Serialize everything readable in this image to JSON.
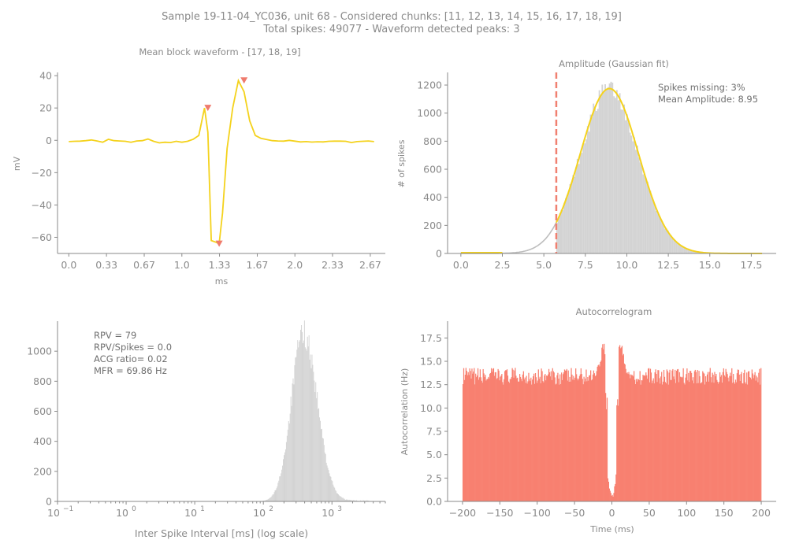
{
  "figure": {
    "title_line1": "Sample 19-11-04_YC036, unit 68 - Considered chunks: [11, 12, 13, 14, 15, 16, 17, 18, 19]",
    "title_line2": "Total spikes: 49077 - Waveform detected peaks: 3"
  },
  "colors": {
    "waveform": "#f4d21c",
    "fit": "#f4d21c",
    "peak_marker": "#ef7b6d",
    "gray_hist": "#d3d3d3",
    "gray_curve": "#bdbdbd",
    "threshold_line": "#f08070",
    "acg_bars": "#f88070",
    "axis": "#8a8a8a"
  },
  "chart_data": [
    {
      "id": "waveform",
      "type": "line",
      "title": "Mean block waveform - [17, 18, 19]",
      "xlabel": "ms",
      "ylabel": "mV",
      "xlim": [
        -0.1,
        2.8
      ],
      "ylim": [
        -70,
        42
      ],
      "x_ticks": [
        0,
        0.333,
        0.667,
        1.0,
        1.333,
        1.667,
        2.0,
        2.333,
        2.667
      ],
      "x_tick_labels": [
        "0.0",
        "0.33",
        "0.67",
        "1.0",
        "1.33",
        "1.67",
        "2.0",
        "2.33",
        "2.67"
      ],
      "y_ticks": [
        -60,
        -40,
        -20,
        0,
        20,
        40
      ],
      "y_tick_labels": [
        "−60",
        "−40",
        "−20",
        "0",
        "20",
        "40"
      ],
      "x": [
        0,
        0.05,
        0.1,
        0.15,
        0.2,
        0.25,
        0.3,
        0.35,
        0.4,
        0.45,
        0.5,
        0.55,
        0.6,
        0.65,
        0.7,
        0.75,
        0.8,
        0.85,
        0.9,
        0.95,
        1.0,
        1.05,
        1.1,
        1.15,
        1.2,
        1.23,
        1.26,
        1.3,
        1.33,
        1.36,
        1.4,
        1.45,
        1.5,
        1.55,
        1.6,
        1.65,
        1.7,
        1.75,
        1.8,
        1.85,
        1.9,
        1.95,
        2.0,
        2.05,
        2.1,
        2.15,
        2.2,
        2.25,
        2.3,
        2.35,
        2.4,
        2.45,
        2.5,
        2.55,
        2.6,
        2.65,
        2.7
      ],
      "y": [
        -0.8,
        -0.6,
        -0.5,
        -0.2,
        0.2,
        -0.4,
        -1.2,
        0.6,
        -0.2,
        -0.4,
        -0.6,
        -1.2,
        -0.4,
        -0.2,
        0.8,
        -0.6,
        -1.6,
        -1.2,
        -1.4,
        -0.6,
        -1.2,
        -0.6,
        0.6,
        3,
        20,
        5,
        -62,
        -63,
        -64,
        -45,
        -5,
        20,
        37,
        30,
        12,
        3,
        1.2,
        0.5,
        -0.2,
        -0.4,
        -0.5,
        0,
        -0.5,
        -1.0,
        -0.8,
        -1.1,
        -0.9,
        -1.0,
        -0.6,
        -0.5,
        -0.5,
        -0.6,
        -1.4,
        -0.8,
        -0.6,
        -0.4,
        -0.8
      ],
      "peaks": [
        {
          "x": 1.23,
          "y": 20
        },
        {
          "x": 1.33,
          "y": -64
        },
        {
          "x": 1.55,
          "y": 37
        }
      ]
    },
    {
      "id": "amplitude",
      "type": "bar",
      "title": "Amplitude (Gaussian fit)",
      "xlabel": "",
      "ylabel": "# of spikes",
      "xlim": [
        -0.8,
        19
      ],
      "ylim": [
        0,
        1290
      ],
      "x_ticks": [
        0,
        2.5,
        5,
        7.5,
        10,
        12.5,
        15,
        17.5
      ],
      "x_tick_labels": [
        "0.0",
        "2.5",
        "5.0",
        "7.5",
        "10.0",
        "12.5",
        "15.0",
        "17.5"
      ],
      "y_ticks": [
        0,
        200,
        400,
        600,
        800,
        1000,
        1200
      ],
      "y_tick_labels": [
        "0",
        "200",
        "400",
        "600",
        "800",
        "1000",
        "1200"
      ],
      "hist_range": [
        5.75,
        14.5
      ],
      "gaussian": {
        "mean": 8.95,
        "sigma": 1.75,
        "peak": 1175,
        "range": [
          0,
          18.2
        ]
      },
      "threshold_x": 5.75,
      "annotations": [
        "Spikes missing: 3%",
        "Mean Amplitude: 8.95"
      ]
    },
    {
      "id": "isi",
      "type": "bar",
      "xscale": "log",
      "title": "",
      "xlabel": "Inter Spike Interval [ms] (log scale)",
      "ylabel": "",
      "xlim": [
        0.1,
        6000
      ],
      "ylim": [
        0,
        1200
      ],
      "x_ticks": [
        0.1,
        1,
        10,
        100,
        1000
      ],
      "x_tick_labels": [
        "10",
        "10",
        "10",
        "10",
        "10"
      ],
      "x_tick_exponents": [
        "−1",
        "0",
        "1",
        "2",
        "3"
      ],
      "y_ticks": [
        0,
        200,
        400,
        600,
        800,
        1000
      ],
      "y_tick_labels": [
        "0",
        "200",
        "400",
        "600",
        "800",
        "1000"
      ],
      "log_mode_ms": 380,
      "log_sigma_decades": 0.2,
      "peak": 1120,
      "annotations": [
        "RPV = 79",
        "RPV/Spikes = 0.0",
        "ACG ratio= 0.02",
        "MFR = 69.86 Hz"
      ]
    },
    {
      "id": "acg",
      "type": "bar",
      "title": "Autocorrelogram",
      "xlabel": "Time (ms)",
      "ylabel": "Autocorrelation (Hz)",
      "xlim": [
        -220,
        220
      ],
      "ylim": [
        0,
        19.3
      ],
      "x_ticks": [
        -200,
        -150,
        -100,
        -50,
        0,
        50,
        100,
        150,
        200
      ],
      "x_tick_labels": [
        "−200",
        "−150",
        "−100",
        "−50",
        "0",
        "50",
        "100",
        "150",
        "200"
      ],
      "y_ticks": [
        0,
        2.5,
        5,
        7.5,
        10,
        12.5,
        15,
        17.5
      ],
      "y_tick_labels": [
        "0.0",
        "2.5",
        "5.0",
        "7.5",
        "10.0",
        "12.5",
        "15.0",
        "17.5"
      ],
      "baseline": 13.4,
      "shoulder_peak": 17.0,
      "trough_min": 0.3
    }
  ]
}
